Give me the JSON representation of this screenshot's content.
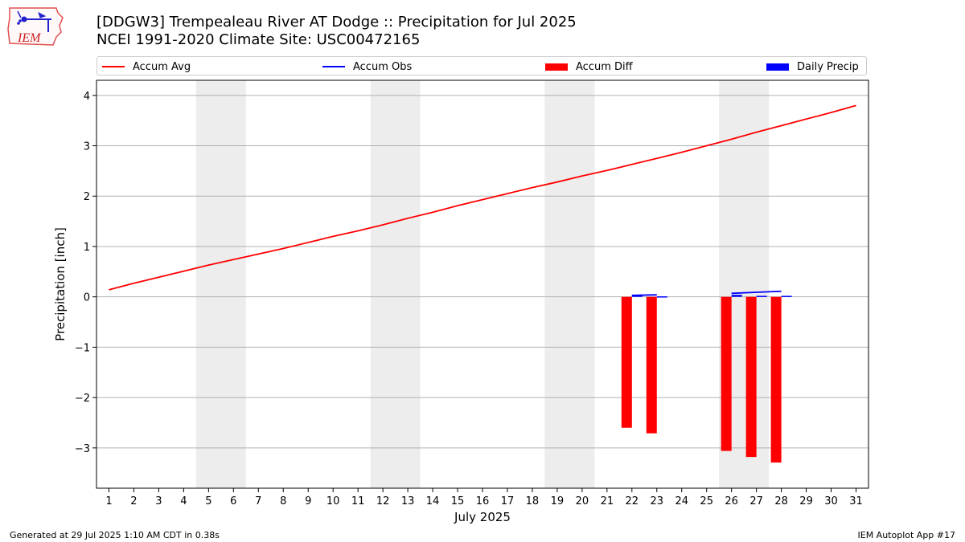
{
  "header": {
    "title_line1": "[DDGW3] Trempealeau River  AT Dodge :: Precipitation for Jul 2025",
    "title_line2": "NCEI 1991-2020 Climate Site: USC00472165",
    "logo_text": "IEM"
  },
  "legend": {
    "items": [
      {
        "label": "Accum Avg",
        "color": "#ff0000",
        "kind": "line"
      },
      {
        "label": "Accum Obs",
        "color": "#0000ff",
        "kind": "line"
      },
      {
        "label": "Accum Diff",
        "color": "#ff0000",
        "kind": "bar"
      },
      {
        "label": "Daily Precip",
        "color": "#0000ff",
        "kind": "bar"
      }
    ],
    "placement": "top, above plot"
  },
  "footer": {
    "left": "Generated at 29 Jul 2025 1:10 AM CDT in 0.38s",
    "right": "IEM Autoplot App #17"
  },
  "chart_data": {
    "type": "bar",
    "xlabel": "July 2025",
    "ylabel": "Precipitation [inch]",
    "xlim": [
      0.5,
      31.5
    ],
    "ylim": [
      -3.8,
      4.3
    ],
    "x_ticks": [
      1,
      2,
      3,
      4,
      5,
      6,
      7,
      8,
      9,
      10,
      11,
      12,
      13,
      14,
      15,
      16,
      17,
      18,
      19,
      20,
      21,
      22,
      23,
      24,
      25,
      26,
      27,
      28,
      29,
      30,
      31
    ],
    "y_ticks": [
      -3,
      -2,
      -1,
      0,
      1,
      2,
      3,
      4
    ],
    "y_tick_labels": [
      "−3",
      "−2",
      "−1",
      "0",
      "1",
      "2",
      "3",
      "4"
    ],
    "grid": "horizontal",
    "weekend_shading": [
      [
        4.5,
        6.5
      ],
      [
        11.5,
        13.5
      ],
      [
        18.5,
        20.5
      ],
      [
        25.5,
        27.5
      ]
    ],
    "weekend_shading_color": "#ededed",
    "series": [
      {
        "name": "Accum Avg",
        "type": "line",
        "color": "#ff0000",
        "x": [
          1,
          2,
          3,
          4,
          5,
          6,
          7,
          8,
          9,
          10,
          11,
          12,
          13,
          14,
          15,
          16,
          17,
          18,
          19,
          20,
          21,
          22,
          23,
          24,
          25,
          26,
          27,
          28,
          29,
          30,
          31
        ],
        "values": [
          0.14,
          0.27,
          0.39,
          0.51,
          0.63,
          0.74,
          0.85,
          0.96,
          1.08,
          1.2,
          1.31,
          1.43,
          1.56,
          1.68,
          1.81,
          1.93,
          2.05,
          2.17,
          2.28,
          2.4,
          2.51,
          2.63,
          2.75,
          2.87,
          3.0,
          3.13,
          3.27,
          3.4,
          3.53,
          3.66,
          3.8
        ]
      },
      {
        "name": "Accum Obs",
        "type": "line",
        "color": "#0000ff",
        "segments": [
          {
            "x": [
              22,
              23
            ],
            "values": [
              0.03,
              0.04
            ]
          },
          {
            "x": [
              26,
              27,
              28
            ],
            "values": [
              0.07,
              0.09,
              0.11
            ]
          }
        ]
      },
      {
        "name": "Accum Diff",
        "type": "bar",
        "color": "#ff0000",
        "x": [
          22,
          23,
          26,
          27,
          28
        ],
        "values": [
          -2.6,
          -2.71,
          -3.06,
          -3.18,
          -3.29
        ]
      },
      {
        "name": "Daily Precip",
        "type": "bar",
        "color": "#0000ff",
        "x": [
          22,
          23,
          26,
          27,
          28
        ],
        "values": [
          0.03,
          0.01,
          0.04,
          0.02,
          0.02
        ]
      }
    ]
  }
}
